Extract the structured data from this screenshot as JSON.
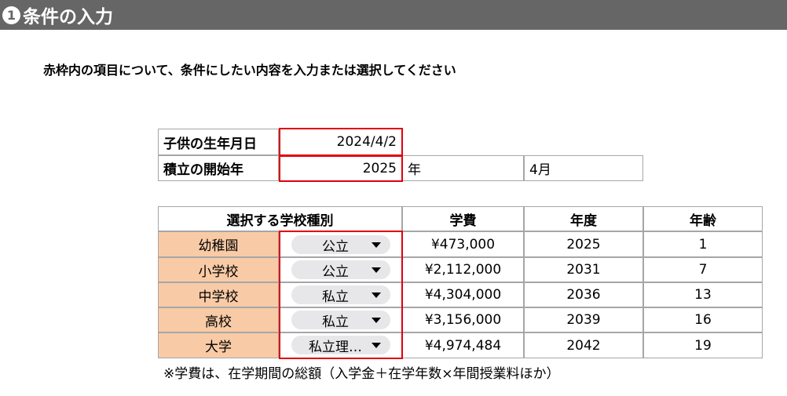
{
  "header": {
    "step_number": "1",
    "title": "条件の入力"
  },
  "instruction": "赤枠内の項目について、条件にしたい内容を入力または選択してください",
  "inputs": {
    "birthdate_label": "子供の生年月日",
    "birthdate_value": "2024/4/2",
    "start_year_label": "積立の開始年",
    "start_year_value": "2025",
    "year_unit": "年",
    "start_month": "4月"
  },
  "table": {
    "headers": {
      "school_type": "選択する学校種別",
      "fee": "学費",
      "year": "年度",
      "age": "年齢"
    },
    "rows": [
      {
        "school": "幼稚園",
        "type": "公立",
        "fee": "¥473,000",
        "year": "2025",
        "age": "1"
      },
      {
        "school": "小学校",
        "type": "公立",
        "fee": "¥2,112,000",
        "year": "2031",
        "age": "7"
      },
      {
        "school": "中学校",
        "type": "私立",
        "fee": "¥4,304,000",
        "year": "2036",
        "age": "13"
      },
      {
        "school": "高校",
        "type": "私立",
        "fee": "¥3,156,000",
        "year": "2039",
        "age": "16"
      },
      {
        "school": "大学",
        "type": "私立理…",
        "fee": "¥4,974,484",
        "year": "2042",
        "age": "19"
      }
    ]
  },
  "note": "※学費は、在学期間の総額（入学金＋在学年数×年間授業料ほか）",
  "colors": {
    "header_bg": "#666666",
    "accent_red": "#e0000b",
    "school_cell_bg": "#f8cba6",
    "dropdown_bg": "#e7e7e9"
  }
}
